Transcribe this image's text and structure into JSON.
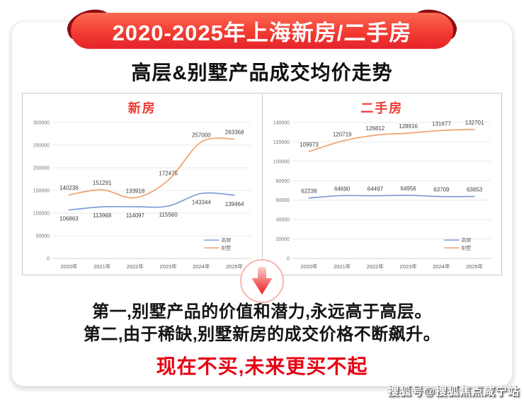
{
  "banner": {
    "title": "2020-2025年上海新房/二手房"
  },
  "subtitle": "高层&别墅产品成交均价走势",
  "chart_data": [
    {
      "type": "line",
      "title": "新房",
      "categories": [
        "2020年",
        "2021年",
        "2022年",
        "2023年",
        "2024年",
        "2025年"
      ],
      "series": [
        {
          "name": "高层",
          "color": "#7e9dd4",
          "labels": "below",
          "values": [
            106863,
            113968,
            114097,
            115560,
            143344,
            139464
          ]
        },
        {
          "name": "别墅",
          "color": "#f0a171",
          "labels": "above",
          "values": [
            140236,
            151291,
            133918,
            172475,
            257000,
            263368
          ]
        }
      ],
      "ylim": [
        0,
        300000
      ],
      "ytick_step": 50000,
      "grid": true,
      "legend_position": "bottom-right"
    },
    {
      "type": "line",
      "title": "二手房",
      "categories": [
        "2020年",
        "2021年",
        "2022年",
        "2023年",
        "2024年",
        "2025年"
      ],
      "series": [
        {
          "name": "高层",
          "color": "#7e9dd4",
          "labels": "above",
          "values": [
            62238,
            64690,
            64497,
            64956,
            63709,
            63853
          ]
        },
        {
          "name": "别墅",
          "color": "#f0a171",
          "labels": "above",
          "values": [
            109973,
            120719,
            126812,
            128916,
            131677,
            132701
          ]
        }
      ],
      "ylim": [
        0,
        140000
      ],
      "ytick_step": 20000,
      "grid": true,
      "legend_position": "bottom-right"
    }
  ],
  "conclusion": {
    "line1": "第一,别墅产品的价值和潜力,永远高于高层。",
    "line2": "第二,由于稀缺,别墅新房的成交价格不断飙升。",
    "highlight": "现在不买,未来更买不起"
  },
  "watermark": "搜狐号@搜狐焦点咸宁站",
  "colors": {
    "ribbon_top": "#fc6a54",
    "ribbon_bottom": "#e6242b",
    "ribbon_curl": "#8c0d12",
    "chart_title_red": "#ee3b33",
    "highlight_red": "#e60012",
    "highrise_line": "#7e9dd4",
    "villa_line": "#f0a171",
    "arrow_gradient_top": "#fdd0c9",
    "arrow_gradient_bottom": "#ea1c24"
  }
}
